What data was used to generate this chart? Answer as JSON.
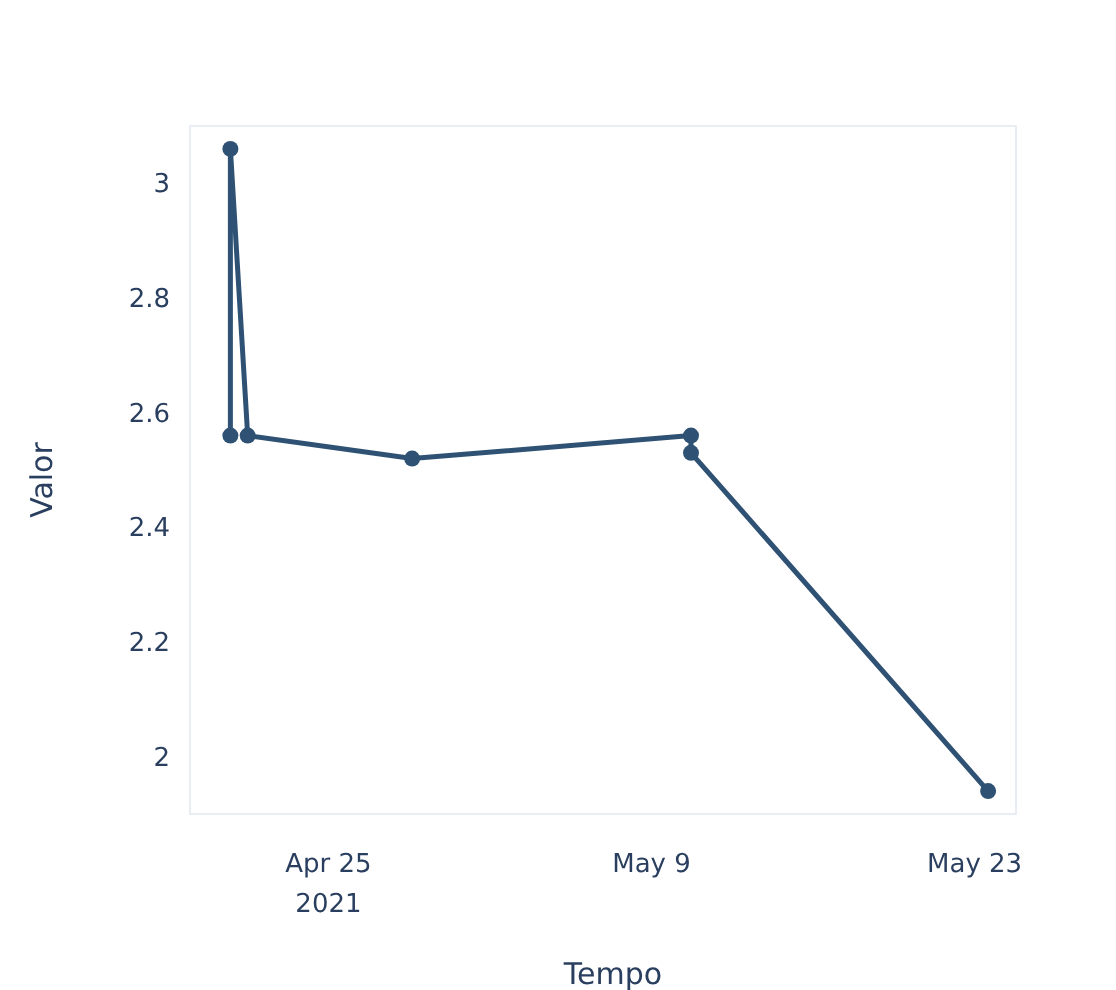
{
  "chart_data": {
    "type": "line",
    "xlabel": "Tempo",
    "ylabel": "Valor",
    "x": [
      "2021-04-20T18:00",
      "2021-04-20T18:00",
      "2021-04-21T12:00",
      "2021-04-28T15:00",
      "2021-05-10T17:00",
      "2021-05-10T17:00",
      "2021-05-23T14:00"
    ],
    "series": [
      {
        "color": "#2f5274",
        "values": [
          2.56,
          3.06,
          2.56,
          2.52,
          2.56,
          2.53,
          1.94
        ]
      }
    ],
    "xlim": [
      "2021-04-19",
      "2021-05-24T19:00"
    ],
    "xticks": [
      {
        "value": "2021-04-25",
        "label": "Apr 25\n2021"
      },
      {
        "value": "2021-05-09",
        "label": "May 9"
      },
      {
        "value": "2021-05-23",
        "label": "May 23"
      }
    ],
    "ylim": [
      1.9,
      3.1
    ],
    "yticks": [
      2,
      2.2,
      2.4,
      2.6,
      2.8,
      3
    ],
    "grid": false,
    "marker": "circle",
    "line_style": "solid"
  }
}
